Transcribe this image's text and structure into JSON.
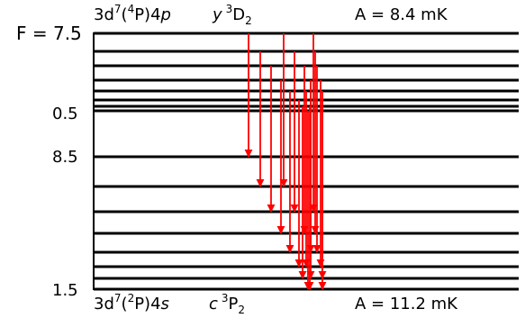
{
  "diagram": {
    "upper_state": {
      "config": "3d",
      "config_sup1": "7",
      "config_mid1": "(",
      "config_sup2": "4",
      "config_mid2": "P)4",
      "config_orb": "p",
      "term_prefix": "y",
      "term_sup": "3",
      "term_letter": "D",
      "term_sub": "2",
      "hyperfine_constant": "A = 8.4 mK",
      "f_top_label": "F = 7.5",
      "f_bottom_label": "0.5",
      "f_values": [
        7.5,
        6.5,
        5.5,
        4.5,
        3.5,
        2.5,
        1.5,
        0.5
      ]
    },
    "lower_state": {
      "config": "3d",
      "config_sup1": "7",
      "config_mid1": "(",
      "config_sup2": "2",
      "config_mid2": "P)4",
      "config_orb": "s",
      "term_prefix": "c",
      "term_sup": "3",
      "term_letter": "P",
      "term_sub": "2",
      "hyperfine_constant": "A = 11.2 mK",
      "f_top_label": "8.5",
      "f_bottom_label": "1.5",
      "f_values": [
        8.5,
        7.5,
        6.5,
        5.5,
        4.5,
        3.5,
        2.5,
        1.5
      ]
    },
    "transition_color": "#ff0000",
    "level_color": "#000000",
    "transitions": [
      {
        "from_F": 7.5,
        "to_F": 8.5
      },
      {
        "from_F": 6.5,
        "to_F": 7.5
      },
      {
        "from_F": 5.5,
        "to_F": 6.5
      },
      {
        "from_F": 7.5,
        "to_F": 7.5
      },
      {
        "from_F": 4.5,
        "to_F": 5.5
      },
      {
        "from_F": 6.5,
        "to_F": 6.5
      },
      {
        "from_F": 3.5,
        "to_F": 4.5
      },
      {
        "from_F": 5.5,
        "to_F": 5.5
      },
      {
        "from_F": 7.5,
        "to_F": 6.5
      },
      {
        "from_F": 2.5,
        "to_F": 3.5
      },
      {
        "from_F": 4.5,
        "to_F": 4.5
      },
      {
        "from_F": 6.5,
        "to_F": 5.5
      },
      {
        "from_F": 1.5,
        "to_F": 2.5
      },
      {
        "from_F": 3.5,
        "to_F": 3.5
      },
      {
        "from_F": 0.5,
        "to_F": 1.5
      },
      {
        "from_F": 2.5,
        "to_F": 2.5
      },
      {
        "from_F": 5.5,
        "to_F": 4.5
      },
      {
        "from_F": 1.5,
        "to_F": 1.5
      },
      {
        "from_F": 4.5,
        "to_F": 3.5
      },
      {
        "from_F": 3.5,
        "to_F": 2.5
      },
      {
        "from_F": 2.5,
        "to_F": 1.5
      }
    ]
  }
}
